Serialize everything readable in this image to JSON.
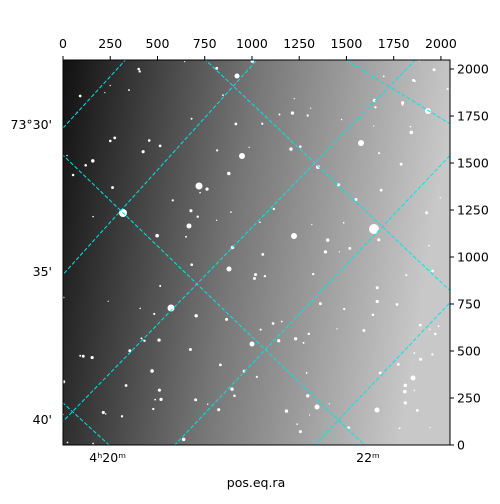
{
  "chart_data": {
    "type": "image",
    "xlabel": "pos.eq.ra",
    "xlim": [
      0,
      2048
    ],
    "xticks": [
      0,
      250,
      500,
      750,
      1000,
      1250,
      1500,
      1750,
      2000
    ],
    "ylim": [
      0,
      2048
    ],
    "yticks": [
      0,
      250,
      500,
      750,
      1000,
      1250,
      1500,
      1750,
      2000
    ],
    "dec_labels": [
      "73°30'",
      "35'",
      "40'"
    ],
    "ra_labels": [
      "4ʰ20ᵐ",
      "22ᵐ"
    ],
    "grid_color": "#00e5e5"
  }
}
